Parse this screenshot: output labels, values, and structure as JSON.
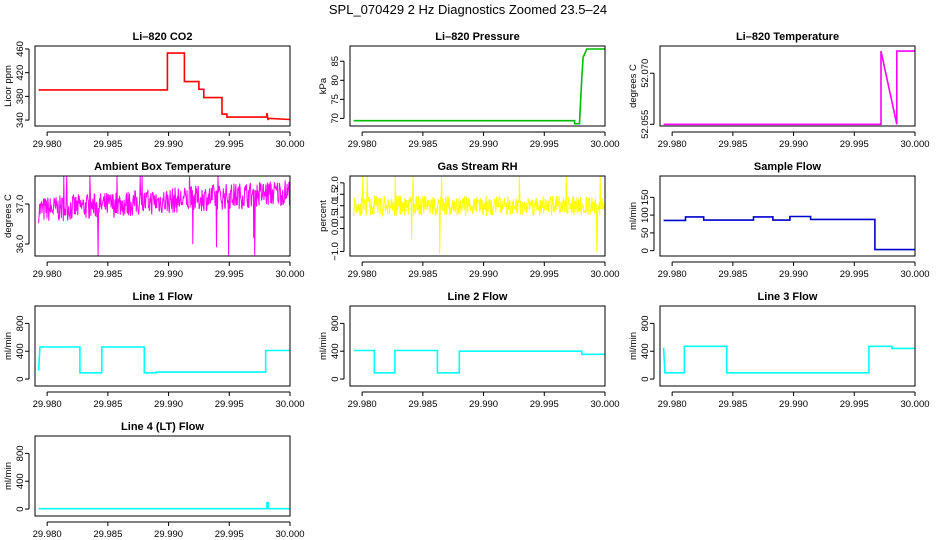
{
  "figure_title": "SPL_070429  2 Hz Diagnostics Zoomed 23.5–24",
  "chart_data": [
    {
      "type": "line",
      "title": "Li–820 CO2",
      "ylabel": "Licor ppm",
      "color": "#ff0000",
      "xlim": [
        29.979,
        30.0
      ],
      "ylim": [
        330,
        465
      ],
      "xticks": [
        29.98,
        29.985,
        29.99,
        29.995,
        30.0
      ],
      "xtick_labels": [
        "29.980",
        "29.985",
        "29.990",
        "29.995",
        "30.000"
      ],
      "yticks": [
        340,
        380,
        420,
        460
      ],
      "ytick_labels": [
        "340",
        "380",
        "420",
        "460"
      ],
      "series": [
        {
          "x": [
            29.9793,
            29.9899,
            29.9899,
            29.9913,
            29.9913,
            29.9925,
            29.9925,
            29.9929,
            29.9929,
            29.9944,
            29.9944,
            29.9948,
            29.9948,
            29.9981,
            29.9981,
            29.9982,
            29.9982,
            30.0
          ],
          "y": [
            391,
            391,
            453,
            453,
            405,
            405,
            392,
            392,
            378,
            378,
            350,
            350,
            345,
            345,
            352,
            340,
            343,
            341
          ]
        }
      ]
    },
    {
      "type": "line",
      "title": "Li–820 Pressure",
      "ylabel": "kPa",
      "color": "#00bb00",
      "xlim": [
        29.979,
        30.0
      ],
      "ylim": [
        68,
        89
      ],
      "xticks": [
        29.98,
        29.985,
        29.99,
        29.995,
        30.0
      ],
      "xtick_labels": [
        "29.980",
        "29.985",
        "29.990",
        "29.995",
        "30.000"
      ],
      "yticks": [
        70,
        75,
        80,
        85
      ],
      "ytick_labels": [
        "70",
        "75",
        "80",
        "85"
      ],
      "series": [
        {
          "x": [
            29.9793,
            29.9975,
            29.9975,
            29.9979,
            29.998,
            29.9981,
            29.9982,
            29.9985,
            30.0
          ],
          "y": [
            69.4,
            69.4,
            68.6,
            68.6,
            75,
            81,
            86,
            88.2,
            88.2
          ]
        }
      ]
    },
    {
      "type": "line",
      "title": "Li–820 Temperature",
      "ylabel": "degrees C",
      "color": "#ff00ff",
      "xlim": [
        29.979,
        30.0
      ],
      "ylim": [
        52.0545,
        52.078
      ],
      "xticks": [
        29.98,
        29.985,
        29.99,
        29.995,
        30.0
      ],
      "xtick_labels": [
        "29.980",
        "29.985",
        "29.990",
        "29.995",
        "30.000"
      ],
      "yticks": [
        52.055,
        52.07
      ],
      "ytick_labels": [
        "52.055",
        "52.070"
      ],
      "series": [
        {
          "x": [
            29.9793,
            29.9972,
            29.9972,
            29.9985,
            29.9985,
            30.0
          ],
          "y": [
            52.055,
            52.055,
            52.0765,
            52.055,
            52.0765,
            52.0765
          ]
        }
      ]
    },
    {
      "type": "line",
      "title": "Ambient Box Temperature",
      "ylabel": "degrees C",
      "color": "#ff00ff",
      "xlim": [
        29.979,
        30.0
      ],
      "ylim": [
        35.7,
        37.7
      ],
      "xticks": [
        29.98,
        29.985,
        29.99,
        29.995,
        30.0
      ],
      "xtick_labels": [
        "29.980",
        "29.985",
        "29.990",
        "29.995",
        "30.000"
      ],
      "yticks": [
        36.0,
        37.0
      ],
      "ytick_labels": [
        "36.0",
        "37.0"
      ],
      "series": [
        {
          "x": [
            29.9793,
            30.0
          ],
          "y": [
            36.85,
            37.3
          ]
        }
      ]
    },
    {
      "type": "line",
      "title": "Gas Stream RH",
      "ylabel": "percent",
      "color": "#ffff00",
      "xlim": [
        29.979,
        30.0
      ],
      "ylim": [
        -1.2,
        2.3
      ],
      "xticks": [
        29.98,
        29.985,
        29.99,
        29.995,
        30.0
      ],
      "xtick_labels": [
        "29.980",
        "29.985",
        "29.990",
        "29.995",
        "30.000"
      ],
      "yticks": [
        -1.0,
        0.0,
        0.5,
        1.0,
        1.5,
        2.0
      ],
      "ytick_labels": [
        "−1.0",
        "0.0",
        "0.5",
        "1.0",
        "1.5",
        "2.0"
      ],
      "series": [
        {
          "x": [
            29.9793,
            30.0
          ],
          "y": [
            1.0,
            1.0
          ]
        }
      ]
    },
    {
      "type": "line",
      "title": "Sample Flow",
      "ylabel": "ml/min",
      "color": "#0000cc",
      "xlim": [
        29.979,
        30.0
      ],
      "ylim": [
        -15,
        210
      ],
      "xticks": [
        29.98,
        29.985,
        29.99,
        29.995,
        30.0
      ],
      "xtick_labels": [
        "29.980",
        "29.985",
        "29.990",
        "29.995",
        "30.000"
      ],
      "yticks": [
        0,
        50,
        100,
        150
      ],
      "ytick_labels": [
        "0",
        "50",
        "100",
        "150"
      ],
      "series": [
        {
          "x": [
            29.9793,
            29.9811,
            29.9811,
            29.9826,
            29.9826,
            29.9867,
            29.9867,
            29.9883,
            29.9883,
            29.9897,
            29.9897,
            29.9914,
            29.9914,
            29.9967,
            29.9967,
            30.0
          ],
          "y": [
            85,
            85,
            95,
            95,
            86,
            86,
            95,
            95,
            86,
            86,
            96,
            96,
            88,
            88,
            3,
            3
          ]
        }
      ]
    },
    {
      "type": "line",
      "title": "Line 1 Flow",
      "ylabel": "ml/min",
      "color": "#00ffff",
      "xlim": [
        29.979,
        30.0
      ],
      "ylim": [
        -100,
        1050
      ],
      "xticks": [
        29.98,
        29.985,
        29.99,
        29.995,
        30.0
      ],
      "xtick_labels": [
        "29.980",
        "29.985",
        "29.990",
        "29.995",
        "30.000"
      ],
      "yticks": [
        0,
        400,
        800
      ],
      "ytick_labels": [
        "0",
        "400",
        "800"
      ],
      "series": [
        {
          "x": [
            29.9793,
            29.9794,
            29.9827,
            29.9827,
            29.9845,
            29.9845,
            29.988,
            29.988,
            29.989,
            29.989,
            29.998,
            29.998,
            30.0
          ],
          "y": [
            120,
            460,
            460,
            90,
            90,
            460,
            460,
            90,
            90,
            100,
            100,
            410,
            410
          ]
        }
      ]
    },
    {
      "type": "line",
      "title": "Line 2 Flow",
      "ylabel": "ml/min",
      "color": "#00ffff",
      "xlim": [
        29.979,
        30.0
      ],
      "ylim": [
        -100,
        1050
      ],
      "xticks": [
        29.98,
        29.985,
        29.99,
        29.995,
        30.0
      ],
      "xtick_labels": [
        "29.980",
        "29.985",
        "29.990",
        "29.995",
        "30.000"
      ],
      "yticks": [
        0,
        400,
        800
      ],
      "ytick_labels": [
        "0",
        "400",
        "800"
      ],
      "series": [
        {
          "x": [
            29.9793,
            29.981,
            29.981,
            29.9827,
            29.9827,
            29.9862,
            29.9862,
            29.988,
            29.988,
            29.9981,
            29.9981,
            30.0
          ],
          "y": [
            410,
            410,
            90,
            90,
            410,
            410,
            90,
            90,
            400,
            400,
            355,
            355
          ]
        }
      ]
    },
    {
      "type": "line",
      "title": "Line 3 Flow",
      "ylabel": "ml/min",
      "color": "#00ffff",
      "xlim": [
        29.979,
        30.0
      ],
      "ylim": [
        -100,
        1050
      ],
      "xticks": [
        29.98,
        29.985,
        29.99,
        29.995,
        30.0
      ],
      "xtick_labels": [
        "29.980",
        "29.985",
        "29.990",
        "29.995",
        "30.000"
      ],
      "yticks": [
        0,
        400,
        800
      ],
      "ytick_labels": [
        "0",
        "400",
        "800"
      ],
      "series": [
        {
          "x": [
            29.9793,
            29.9794,
            29.981,
            29.981,
            29.9845,
            29.9845,
            29.9962,
            29.9962,
            29.9981,
            29.9981,
            30.0
          ],
          "y": [
            450,
            90,
            90,
            470,
            470,
            90,
            90,
            470,
            470,
            440,
            440
          ]
        }
      ]
    },
    {
      "type": "line",
      "title": "Line 4 (LT) Flow",
      "ylabel": "ml/min",
      "color": "#00ffff",
      "xlim": [
        29.979,
        30.0
      ],
      "ylim": [
        -100,
        1050
      ],
      "xticks": [
        29.98,
        29.985,
        29.99,
        29.995,
        30.0
      ],
      "xtick_labels": [
        "29.980",
        "29.985",
        "29.990",
        "29.995",
        "30.000"
      ],
      "yticks": [
        0,
        400,
        800
      ],
      "ytick_labels": [
        "0",
        "400",
        "800"
      ],
      "series": [
        {
          "x": [
            29.9793,
            29.9981,
            29.9981,
            29.9982,
            29.9982,
            30.0
          ],
          "y": [
            5,
            5,
            90,
            90,
            5,
            5
          ]
        }
      ]
    }
  ]
}
